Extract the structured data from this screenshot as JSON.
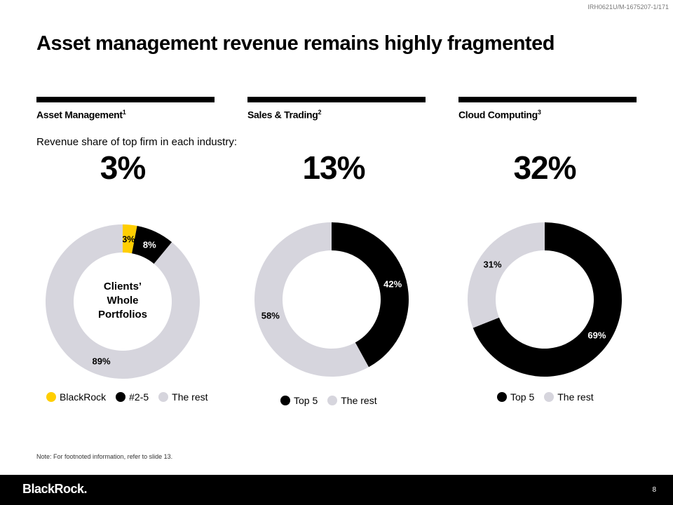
{
  "doc_id": "IRH0621U/M-1675207-1/171",
  "title": "Asset management revenue remains highly fragmented",
  "subtitle": "Revenue share of top firm in each industry:",
  "colors": {
    "yellow": "#FFCE00",
    "black": "#000000",
    "grey": "#D6D5DD"
  },
  "columns": [
    {
      "heading": "Asset Management",
      "footnote": "1",
      "top_firm_share": "3%"
    },
    {
      "heading": "Sales & Trading",
      "footnote": "2",
      "top_firm_share": "13%"
    },
    {
      "heading": "Cloud Computing",
      "footnote": "3",
      "top_firm_share": "32%"
    }
  ],
  "chart_data": [
    {
      "type": "pie",
      "donut": true,
      "center_label": [
        "Clients’",
        "Whole",
        "Portfolios"
      ],
      "categories": [
        "BlackRock",
        "#2-5",
        "The rest"
      ],
      "values": [
        3,
        8,
        89
      ],
      "labels": [
        "3%",
        "8%",
        "89%"
      ],
      "colors": [
        "#FFCE00",
        "#000000",
        "#D6D5DD"
      ],
      "legend": "bottom"
    },
    {
      "type": "pie",
      "donut": true,
      "categories": [
        "Top 5",
        "The rest"
      ],
      "values": [
        42,
        58
      ],
      "labels": [
        "42%",
        "58%"
      ],
      "colors": [
        "#000000",
        "#D6D5DD"
      ],
      "legend": "bottom"
    },
    {
      "type": "pie",
      "donut": true,
      "categories": [
        "Top 5",
        "The rest"
      ],
      "values": [
        69,
        31
      ],
      "labels": [
        "69%",
        "31%"
      ],
      "colors": [
        "#000000",
        "#D6D5DD"
      ],
      "legend": "bottom"
    }
  ],
  "note": "Note: For footnoted information, refer to slide 13.",
  "footer": {
    "logo": "BlackRock.",
    "page": "8"
  }
}
